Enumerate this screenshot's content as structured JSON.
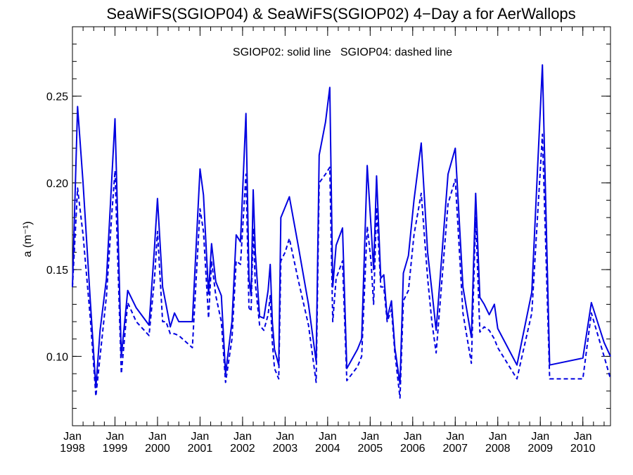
{
  "chart_data": {
    "type": "line",
    "title": "SeaWiFS(SGIOP04) & SeaWiFS(SGIOP02) 4−Day a for AerWallops",
    "annotation": "SGIOP02: solid line   SGIOP04: dashed line",
    "xlabel": "",
    "ylabel": "a (m⁻¹)",
    "xlim": [
      1998.0,
      2010.65
    ],
    "ylim": [
      0.06,
      0.29
    ],
    "yticks": [
      0.1,
      0.15,
      0.2,
      0.25
    ],
    "ytick_labels": [
      "0.10",
      "0.15",
      "0.20",
      "0.25"
    ],
    "y_minor_step": 0.01,
    "xticks": [
      {
        "value": 1998,
        "month": "Jan",
        "year": "1998"
      },
      {
        "value": 1999,
        "month": "Jan",
        "year": "1999"
      },
      {
        "value": 2000,
        "month": "Jan",
        "year": "2000"
      },
      {
        "value": 2001,
        "month": "Jan",
        "year": "2001"
      },
      {
        "value": 2002,
        "month": "Jan",
        "year": "2002"
      },
      {
        "value": 2003,
        "month": "Jan",
        "year": "2003"
      },
      {
        "value": 2004,
        "month": "Jan",
        "year": "2004"
      },
      {
        "value": 2005,
        "month": "Jan",
        "year": "2005"
      },
      {
        "value": 2006,
        "month": "Jan",
        "year": "2006"
      },
      {
        "value": 2007,
        "month": "Jan",
        "year": "2007"
      },
      {
        "value": 2008,
        "month": "Jan",
        "year": "2008"
      },
      {
        "value": 2009,
        "month": "Jan",
        "year": "2009"
      },
      {
        "value": 2010,
        "month": "Jan",
        "year": "2010"
      }
    ],
    "x_minor_step": 0.25,
    "grid": false,
    "color": "#0000e0",
    "series": [
      {
        "name": "SGIOP02",
        "style": "solid",
        "x": [
          1998.0,
          1998.12,
          1998.25,
          1998.42,
          1998.55,
          1998.65,
          1998.8,
          1998.92,
          1999.0,
          1999.15,
          1999.3,
          1999.5,
          1999.8,
          1999.93,
          2000.0,
          2000.12,
          2000.2,
          2000.3,
          2000.4,
          2000.5,
          2000.82,
          2001.0,
          2001.08,
          2001.2,
          2001.27,
          2001.37,
          2001.5,
          2001.6,
          2001.75,
          2001.85,
          2001.95,
          2002.08,
          2002.15,
          2002.2,
          2002.25,
          2002.3,
          2002.4,
          2002.5,
          2002.6,
          2002.65,
          2002.7,
          2002.75,
          2002.85,
          2002.9,
          2003.0,
          2003.1,
          2003.3,
          2003.55,
          2003.73,
          2003.8,
          2003.95,
          2004.05,
          2004.12,
          2004.2,
          2004.35,
          2004.45,
          2004.7,
          2004.8,
          2004.93,
          2005.02,
          2005.08,
          2005.15,
          2005.25,
          2005.32,
          2005.4,
          2005.5,
          2005.58,
          2005.7,
          2005.78,
          2005.9,
          2006.03,
          2006.2,
          2006.35,
          2006.45,
          2006.55,
          2006.83,
          2007.0,
          2007.18,
          2007.38,
          2007.48,
          2007.58,
          2007.68,
          2007.8,
          2007.92,
          2008.0,
          2008.45,
          2008.8,
          2009.05,
          2009.22,
          2010.0,
          2010.2,
          2010.5,
          2010.65
        ],
        "y": [
          0.14,
          0.244,
          0.2,
          0.132,
          0.082,
          0.115,
          0.145,
          0.2,
          0.237,
          0.1,
          0.138,
          0.128,
          0.118,
          0.163,
          0.191,
          0.14,
          0.13,
          0.117,
          0.125,
          0.12,
          0.12,
          0.208,
          0.193,
          0.136,
          0.165,
          0.143,
          0.135,
          0.09,
          0.12,
          0.17,
          0.166,
          0.24,
          0.145,
          0.135,
          0.196,
          0.16,
          0.123,
          0.122,
          0.138,
          0.153,
          0.12,
          0.104,
          0.095,
          0.18,
          0.186,
          0.192,
          0.165,
          0.13,
          0.097,
          0.216,
          0.235,
          0.255,
          0.14,
          0.164,
          0.174,
          0.093,
          0.104,
          0.11,
          0.21,
          0.175,
          0.15,
          0.204,
          0.145,
          0.147,
          0.122,
          0.132,
          0.105,
          0.084,
          0.148,
          0.158,
          0.19,
          0.223,
          0.16,
          0.138,
          0.115,
          0.205,
          0.22,
          0.14,
          0.111,
          0.194,
          0.134,
          0.13,
          0.124,
          0.13,
          0.116,
          0.095,
          0.137,
          0.268,
          0.095,
          0.099,
          0.131,
          0.108,
          0.1
        ]
      },
      {
        "name": "SGIOP04",
        "style": "dashed",
        "x": [
          1998.0,
          1998.12,
          1998.25,
          1998.42,
          1998.55,
          1998.65,
          1998.8,
          1998.92,
          1999.0,
          1999.15,
          1999.3,
          1999.5,
          1999.8,
          1999.93,
          2000.0,
          2000.12,
          2000.2,
          2000.3,
          2000.4,
          2000.5,
          2000.82,
          2001.0,
          2001.08,
          2001.2,
          2001.27,
          2001.37,
          2001.5,
          2001.6,
          2001.75,
          2001.85,
          2001.95,
          2002.08,
          2002.15,
          2002.2,
          2002.25,
          2002.3,
          2002.4,
          2002.5,
          2002.6,
          2002.65,
          2002.7,
          2002.75,
          2002.85,
          2002.9,
          2003.0,
          2003.1,
          2003.3,
          2003.55,
          2003.73,
          2003.8,
          2003.95,
          2004.05,
          2004.12,
          2004.2,
          2004.35,
          2004.45,
          2004.7,
          2004.8,
          2004.93,
          2005.02,
          2005.08,
          2005.15,
          2005.25,
          2005.32,
          2005.4,
          2005.5,
          2005.58,
          2005.7,
          2005.78,
          2005.9,
          2006.03,
          2006.2,
          2006.35,
          2006.45,
          2006.55,
          2006.83,
          2007.0,
          2007.18,
          2007.38,
          2007.48,
          2007.58,
          2007.68,
          2007.8,
          2007.92,
          2008.0,
          2008.45,
          2008.8,
          2009.05,
          2009.22,
          2010.0,
          2010.2,
          2010.5,
          2010.65
        ],
        "y": [
          0.14,
          0.197,
          0.17,
          0.122,
          0.077,
          0.1,
          0.135,
          0.18,
          0.207,
          0.09,
          0.131,
          0.12,
          0.112,
          0.145,
          0.172,
          0.12,
          0.12,
          0.113,
          0.113,
          0.112,
          0.105,
          0.185,
          0.172,
          0.122,
          0.155,
          0.135,
          0.12,
          0.085,
          0.11,
          0.155,
          0.153,
          0.205,
          0.128,
          0.126,
          0.174,
          0.142,
          0.118,
          0.115,
          0.124,
          0.135,
          0.108,
          0.093,
          0.087,
          0.155,
          0.16,
          0.168,
          0.145,
          0.118,
          0.085,
          0.2,
          0.205,
          0.209,
          0.12,
          0.145,
          0.155,
          0.086,
          0.094,
          0.1,
          0.175,
          0.155,
          0.13,
          0.186,
          0.14,
          0.14,
          0.12,
          0.127,
          0.102,
          0.076,
          0.132,
          0.138,
          0.17,
          0.194,
          0.145,
          0.12,
          0.102,
          0.188,
          0.202,
          0.125,
          0.096,
          0.18,
          0.114,
          0.117,
          0.115,
          0.11,
          0.105,
          0.087,
          0.125,
          0.228,
          0.087,
          0.087,
          0.125,
          0.1,
          0.087
        ]
      }
    ]
  }
}
